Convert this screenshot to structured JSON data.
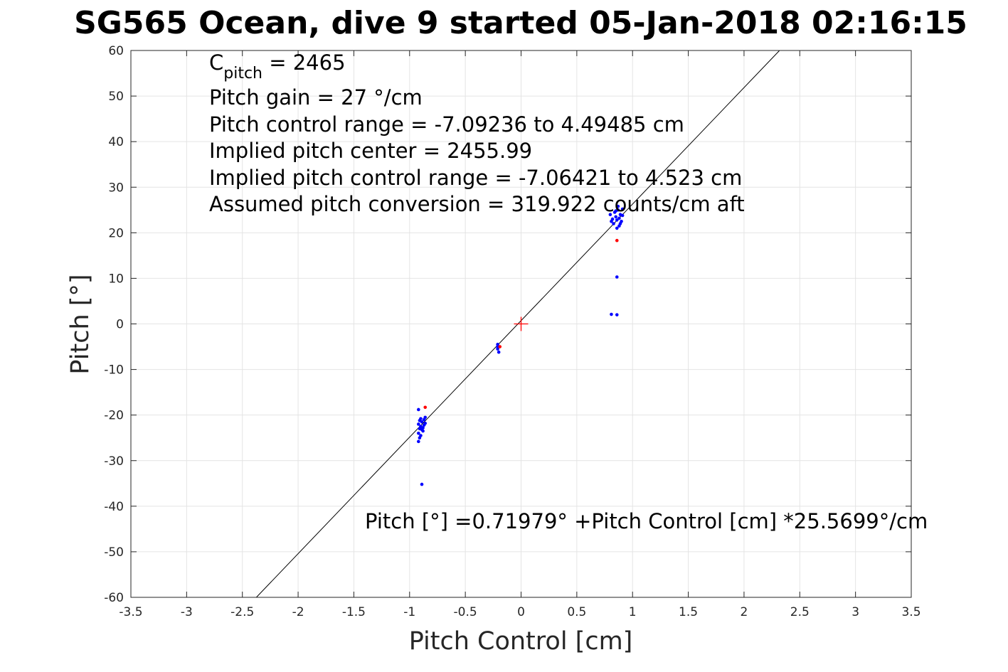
{
  "chart_data": {
    "type": "scatter",
    "title": "SG565 Ocean, dive 9 started 05-Jan-2018 02:16:15",
    "xlabel": "Pitch Control [cm]",
    "ylabel": "Pitch [°]",
    "xlim": [
      -3.5,
      3.5
    ],
    "ylim": [
      -60,
      60
    ],
    "xticks": [
      -3.5,
      -3,
      -2.5,
      -2,
      -1.5,
      -1,
      -0.5,
      0,
      0.5,
      1,
      1.5,
      2,
      2.5,
      3,
      3.5
    ],
    "yticks": [
      -60,
      -50,
      -40,
      -30,
      -20,
      -10,
      0,
      10,
      20,
      30,
      40,
      50,
      60
    ],
    "grid": true,
    "annotations": {
      "cpitch_base": "C",
      "cpitch_sub": "pitch",
      "cpitch_rest": " = 2465",
      "lines": [
        "Pitch gain = 27 °/cm",
        "Pitch control range = -7.09236 to 4.49485 cm",
        "Implied pitch center = 2455.99",
        "Implied pitch control range = -7.06421 to 4.523 cm",
        "Assumed pitch conversion = 319.922 counts/cm aft"
      ],
      "fit_equation": "Pitch [°] =0.71979° +Pitch Control [cm] *25.5699°/cm"
    },
    "fit_line": {
      "intercept": 0.71979,
      "slope": 25.5699,
      "color": "#000000"
    },
    "center_marker": {
      "x": 0,
      "y": 0,
      "color": "#ff0000"
    },
    "series": [
      {
        "color": "#0000ff",
        "points": [
          [
            -0.92,
            -22.0
          ],
          [
            -0.91,
            -23.0
          ],
          [
            -0.92,
            -24.0
          ],
          [
            -0.91,
            -25.0
          ],
          [
            -0.92,
            -25.8
          ],
          [
            -0.9,
            -22.5
          ],
          [
            -0.89,
            -21.5
          ],
          [
            -0.88,
            -22.8
          ],
          [
            -0.87,
            -21.0
          ],
          [
            -0.86,
            -20.5
          ],
          [
            -0.88,
            -23.5
          ],
          [
            -0.9,
            -24.5
          ],
          [
            -0.91,
            -21.2
          ],
          [
            -0.89,
            -23.2
          ],
          [
            -0.87,
            -22.2
          ],
          [
            -0.86,
            -21.8
          ],
          [
            -0.9,
            -20.8
          ],
          [
            -0.92,
            -18.8
          ],
          [
            -0.89,
            -35.2
          ],
          [
            -0.21,
            -4.5
          ],
          [
            -0.21,
            -5.5
          ],
          [
            -0.2,
            -6.2
          ],
          [
            -0.21,
            -5.0
          ],
          [
            0.8,
            24.0
          ],
          [
            0.81,
            22.5
          ],
          [
            0.82,
            23.0
          ],
          [
            0.83,
            22.0
          ],
          [
            0.84,
            24.5
          ],
          [
            0.85,
            23.5
          ],
          [
            0.86,
            22.8
          ],
          [
            0.87,
            25.0
          ],
          [
            0.88,
            23.2
          ],
          [
            0.89,
            24.0
          ],
          [
            0.9,
            22.5
          ],
          [
            0.91,
            23.8
          ],
          [
            0.86,
            21.0
          ],
          [
            0.88,
            21.5
          ],
          [
            0.87,
            25.8
          ],
          [
            0.85,
            24.8
          ],
          [
            0.89,
            22.0
          ],
          [
            0.91,
            25.2
          ],
          [
            0.86,
            10.3
          ],
          [
            0.81,
            2.1
          ],
          [
            0.86,
            2.0
          ]
        ]
      },
      {
        "color": "#ff0000",
        "points": [
          [
            -0.86,
            -18.3
          ],
          [
            -0.19,
            -5.0
          ],
          [
            0.86,
            18.3
          ]
        ]
      }
    ]
  }
}
